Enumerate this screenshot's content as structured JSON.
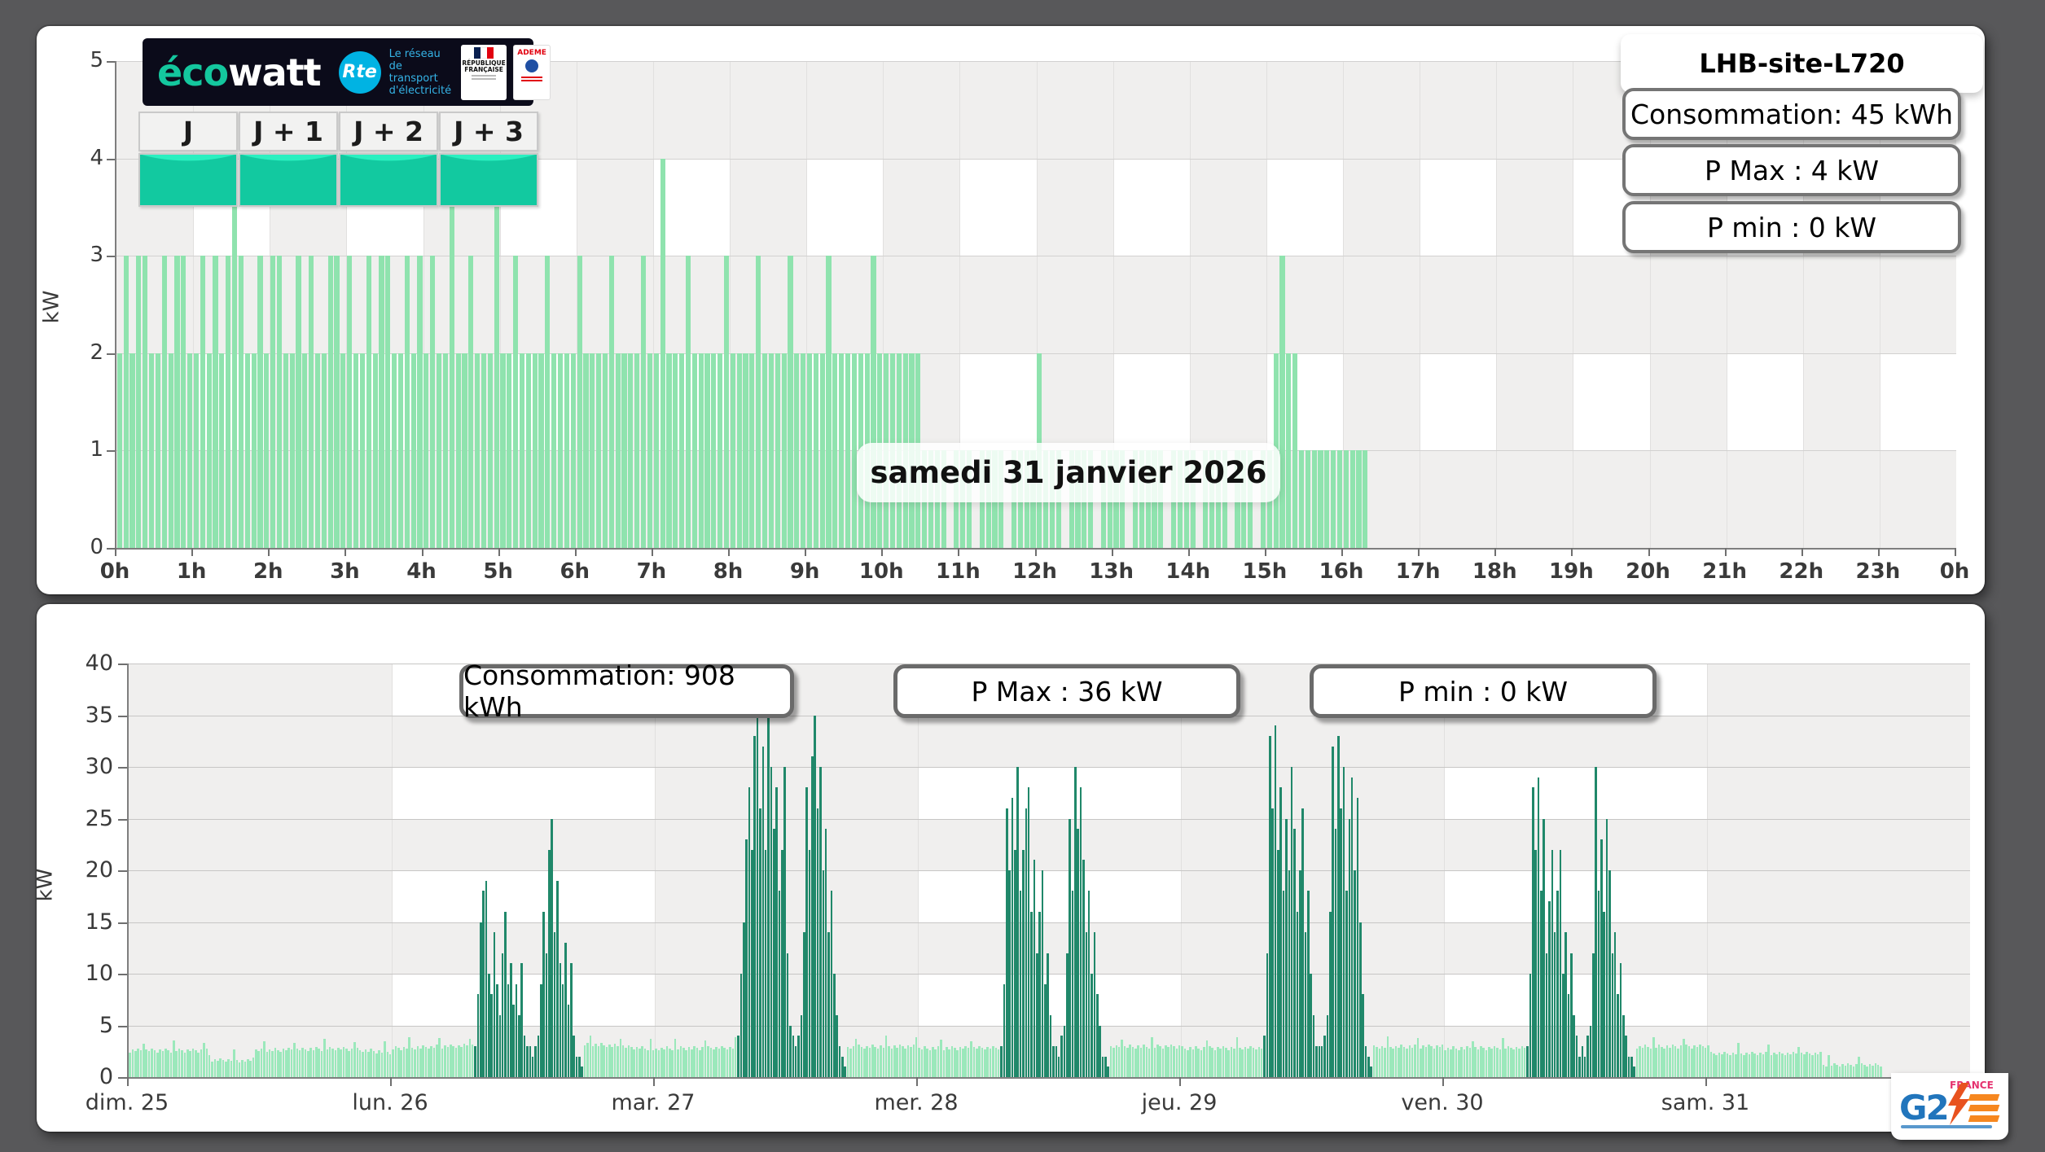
{
  "colors": {
    "page_bg": "#58585a",
    "bar_light": "#8fe3ae",
    "bar_light_week": "#9be8bb",
    "bar_dark": "#20886a",
    "cell_gray": "#f0efee",
    "cell_white": "#ffffff",
    "axis": "#7e7e7e",
    "rte_blue": "#00b3e3",
    "ecowatt_teal": "#14c79e",
    "g2_blue": "#2175bc",
    "g2_orange": "#f6871f",
    "g2_red": "#e5336f"
  },
  "ecowatt_banner": {
    "brand_eco": "éco",
    "brand_watt": "watt",
    "rte": "Rte",
    "rte_tagline": [
      "Le réseau",
      "de transport",
      "d'électricité"
    ],
    "republique": [
      "RÉPUBLIQUE",
      "FRANÇAISE"
    ],
    "ademe": "ADEME"
  },
  "day_buttons": [
    {
      "label": "J"
    },
    {
      "label": "J + 1"
    },
    {
      "label": "J + 2"
    },
    {
      "label": "J + 3"
    }
  ],
  "g2e_logo": {
    "g2": "G2",
    "france": "FRANCE"
  },
  "chart_data": [
    {
      "id": "daily",
      "type": "bar",
      "site": "LHB-site-L720",
      "tooltip": "samedi 31 janvier 2026",
      "stats": {
        "consumption": "Consommation: 45 kWh",
        "pmax": "P Max :  4 kW",
        "pmin": "P min : 0 kW"
      },
      "ylabel": "kW",
      "ylim": [
        0,
        5
      ],
      "yticks": [
        0,
        1,
        2,
        3,
        4,
        5
      ],
      "xticks": [
        "0h",
        "1h",
        "2h",
        "3h",
        "4h",
        "5h",
        "6h",
        "7h",
        "8h",
        "9h",
        "10h",
        "11h",
        "12h",
        "13h",
        "14h",
        "15h",
        "16h",
        "17h",
        "18h",
        "19h",
        "20h",
        "21h",
        "22h",
        "23h",
        "0h"
      ],
      "interval_min": 5,
      "values_segments": [
        "232332232332232323",
        "4",
        "32232332232322332322323322323232",
        "2",
        "4",
        "223222",
        "4",
        "2232222322223222232222322",
        "4",
        "2223222223222232222322222322",
        "222232222222",
        "111101110111101111",
        "2",
        "11101111011110111",
        "110111101111011101",
        "123221",
        "1111111111"
      ]
    },
    {
      "id": "weekly",
      "type": "bar",
      "stats": {
        "consumption": "Consommation: 908 kWh",
        "pmax": "P Max :  36 kW",
        "pmin": "P min : 0 kW"
      },
      "ylabel": "kW",
      "ylim": [
        0,
        40
      ],
      "yticks": [
        0,
        5,
        10,
        15,
        20,
        25,
        30,
        35,
        40
      ],
      "xticks": [
        "dim. 25",
        "lun. 26",
        "mar. 27",
        "mer. 28",
        "jeu. 29",
        "ven. 30",
        "sam. 31"
      ],
      "interval_min": 15,
      "days": [
        {
          "label": "dim. 25",
          "end": 24,
          "base": [
            [
              0,
              2.4
            ],
            [
              7,
              2.4
            ],
            [
              7.5,
              1.5
            ],
            [
              11,
              1.4
            ],
            [
              11.5,
              2.4
            ],
            [
              19,
              2.6
            ],
            [
              24,
              2.2
            ]
          ],
          "cluster_start": null,
          "cluster": []
        },
        {
          "label": "lun. 26",
          "end": 24,
          "base": [
            [
              0,
              2.6
            ],
            [
              7.5,
              2.9
            ],
            [
              17.5,
              3.0
            ],
            [
              21,
              2.8
            ],
            [
              24,
              2.5
            ]
          ],
          "cluster_start": 7.5,
          "cluster": [
            3,
            8,
            15,
            18,
            19,
            10,
            8,
            14,
            9,
            6,
            12,
            16,
            9,
            11,
            7,
            9,
            6,
            11,
            4,
            3,
            3,
            2,
            3,
            4,
            9,
            16,
            12,
            22,
            25,
            14,
            19,
            11,
            9,
            13,
            7,
            11,
            4,
            2,
            2,
            1
          ]
        },
        {
          "label": "mar. 27",
          "end": 24,
          "base": [
            [
              0,
              2.6
            ],
            [
              24,
              2.8
            ]
          ],
          "cluster_start": 7.5,
          "cluster": [
            4,
            10,
            15,
            23,
            28,
            22,
            33,
            35,
            26,
            32,
            22,
            36,
            30,
            24,
            28,
            18,
            22,
            30,
            12,
            5,
            4,
            3,
            4,
            6,
            14,
            28,
            22,
            31,
            35,
            26,
            30,
            20,
            24,
            14,
            18,
            10,
            6,
            3,
            2,
            1
          ]
        },
        {
          "label": "mer. 28",
          "end": 24,
          "base": [
            [
              0,
              2.6
            ],
            [
              24,
              2.8
            ]
          ],
          "cluster_start": 7.5,
          "cluster": [
            3,
            9,
            26,
            20,
            27,
            22,
            30,
            18,
            22,
            26,
            28,
            16,
            21,
            12,
            16,
            20,
            9,
            12,
            6,
            3,
            3,
            2,
            4,
            5,
            12,
            25,
            18,
            30,
            24,
            28,
            21,
            14,
            18,
            10,
            14,
            8,
            5,
            2,
            2,
            1
          ]
        },
        {
          "label": "jeu. 29",
          "end": 24,
          "base": [
            [
              0,
              2.6
            ],
            [
              24,
              2.8
            ]
          ],
          "cluster_start": 7.5,
          "cluster": [
            4,
            12,
            33,
            26,
            34,
            22,
            28,
            18,
            25,
            20,
            30,
            24,
            16,
            20,
            26,
            14,
            18,
            10,
            6,
            3,
            3,
            3,
            4,
            6,
            16,
            32,
            24,
            33,
            26,
            30,
            18,
            25,
            29,
            20,
            27,
            15,
            8,
            3,
            2,
            1
          ]
        },
        {
          "label": "ven. 30",
          "end": 24,
          "base": [
            [
              0,
              2.6
            ],
            [
              24,
              2.8
            ]
          ],
          "cluster_start": 7.5,
          "cluster": [
            3,
            10,
            28,
            22,
            29,
            18,
            25,
            12,
            17,
            22,
            14,
            18,
            22,
            10,
            14,
            8,
            12,
            6,
            4,
            2,
            3,
            2,
            4,
            5,
            12,
            30,
            18,
            23,
            16,
            25,
            20,
            12,
            14,
            8,
            11,
            6,
            4,
            2,
            2,
            1
          ]
        },
        {
          "label": "sam. 31",
          "end": 16,
          "base": [
            [
              0,
              2.1
            ],
            [
              10.4,
              2.1
            ],
            [
              10.5,
              1.0
            ],
            [
              16,
              1.0
            ]
          ],
          "cluster_start": null,
          "cluster": []
        }
      ]
    }
  ]
}
